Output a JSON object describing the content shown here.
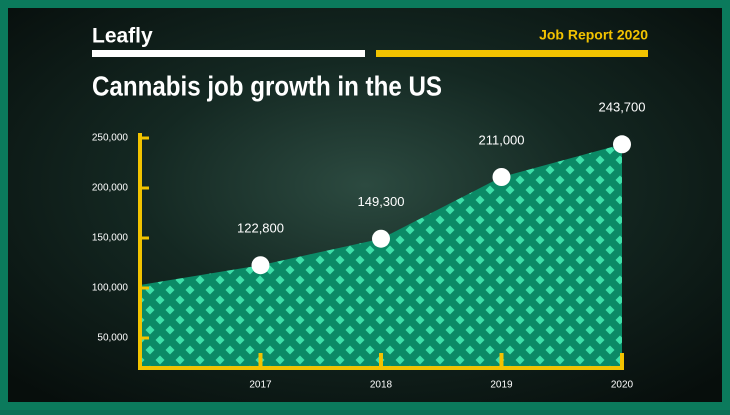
{
  "header": {
    "logo": "Leafly",
    "report": "Job Report 2020"
  },
  "chart_data": {
    "type": "area",
    "title": "Cannabis job growth in the US",
    "categories": [
      null,
      "2017",
      "2018",
      "2019",
      "2020"
    ],
    "values": [
      103000,
      122800,
      149300,
      211000,
      243700
    ],
    "value_labels": [
      null,
      "122,800",
      "149,300",
      "211,000",
      "243,700"
    ],
    "color": "#0b8a66",
    "pattern_color": "#3fe0aa",
    "point_color": "#ffffff",
    "axis_color": "#f2c300",
    "ylim": [
      20000,
      255000
    ],
    "yticks": [
      {
        "value": 50000,
        "label": "50,000"
      },
      {
        "value": 100000,
        "label": "100,000"
      },
      {
        "value": 150000,
        "label": "150,000"
      },
      {
        "value": 200000,
        "label": "200,000"
      },
      {
        "value": 250000,
        "label": "250,000"
      }
    ]
  }
}
